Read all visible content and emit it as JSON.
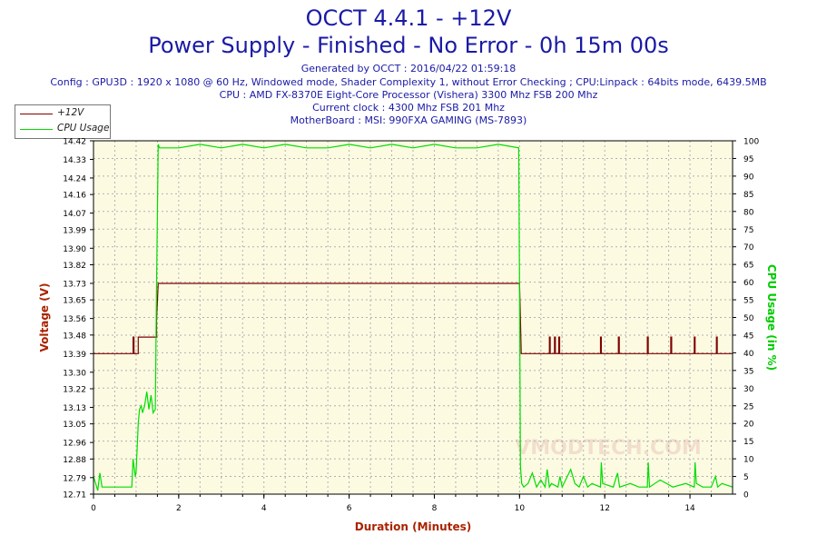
{
  "header": {
    "title": "OCCT 4.4.1 - +12V",
    "subtitle": "Power Supply - Finished - No Error - 0h 15m 00s",
    "generated": "Generated by OCCT : 2016/04/22 01:59:18",
    "config": "Config : GPU3D : 1920 x 1080 @ 60 Hz, Windowed mode, Shader Complexity 1, without Error Checking ; CPU:Linpack : 64bits mode, 6439.5MB",
    "cpu": "CPU : AMD FX-8370E Eight-Core Processor (Vishera) 3300 Mhz FSB 200 Mhz",
    "clock": "Current clock : 4300 Mhz FSB 201 Mhz",
    "motherboard": "MotherBoard : MSI: 990FXA GAMING (MS-7893)"
  },
  "colors": {
    "voltage": "#800000",
    "cpu": "#00dd00",
    "plot_bg": "#fcfbe2",
    "grid": "#b0b0b0",
    "axis_label_x": "#aa2200",
    "axis_label_y_left": "#aa2200",
    "axis_label_y_right": "#00cc00"
  },
  "watermark": "VMODTECH.COM",
  "chart_data": {
    "type": "line",
    "xlabel": "Duration (Minutes)",
    "ylabel_left": "Voltage (V)",
    "ylabel_right": "CPU Usage (in %)",
    "xlim": [
      0,
      15
    ],
    "x_ticks": [
      0,
      2,
      4,
      6,
      8,
      10,
      12,
      14
    ],
    "ylim_left": [
      12.71,
      14.42
    ],
    "y_ticks_left": [
      "12.71",
      "12.79",
      "12.88",
      "12.96",
      "13.05",
      "13.13",
      "13.22",
      "13.30",
      "13.39",
      "13.48",
      "13.56",
      "13.65",
      "13.73",
      "13.82",
      "13.90",
      "13.99",
      "14.07",
      "14.16",
      "14.24",
      "14.33",
      "14.42"
    ],
    "ylim_right": [
      0,
      100
    ],
    "y_ticks_right": [
      0,
      5,
      10,
      15,
      20,
      25,
      30,
      35,
      40,
      45,
      50,
      55,
      60,
      65,
      70,
      75,
      80,
      85,
      90,
      95,
      100
    ],
    "grid": true,
    "legend_position": "top-left",
    "series": [
      {
        "name": "+12V",
        "axis": "left",
        "x": [
          0,
          0.93,
          0.93,
          0.95,
          0.95,
          1.05,
          1.05,
          1.07,
          1.07,
          1.48,
          1.48,
          1.52,
          1.52,
          10.0,
          10.02,
          10.04,
          10.06,
          10.7,
          10.7,
          10.72,
          10.72,
          10.82,
          10.82,
          10.84,
          10.84,
          10.92,
          10.92,
          10.94,
          10.94,
          11.9,
          11.9,
          11.92,
          11.92,
          12.32,
          12.32,
          12.34,
          12.34,
          13.0,
          13.0,
          13.02,
          13.02,
          13.55,
          13.55,
          13.57,
          13.57,
          14.1,
          14.1,
          14.12,
          14.12,
          14.62,
          14.62,
          14.64,
          14.64,
          15.0
        ],
        "y": [
          13.39,
          13.39,
          13.47,
          13.47,
          13.39,
          13.39,
          13.47,
          13.47,
          13.47,
          13.47,
          13.56,
          13.73,
          13.73,
          13.73,
          13.56,
          13.39,
          13.39,
          13.39,
          13.47,
          13.47,
          13.39,
          13.39,
          13.47,
          13.47,
          13.39,
          13.39,
          13.47,
          13.47,
          13.39,
          13.39,
          13.47,
          13.47,
          13.39,
          13.39,
          13.47,
          13.47,
          13.39,
          13.39,
          13.47,
          13.47,
          13.39,
          13.39,
          13.47,
          13.47,
          13.39,
          13.39,
          13.47,
          13.47,
          13.39,
          13.39,
          13.47,
          13.47,
          13.39,
          13.39
        ]
      },
      {
        "name": "CPU Usage",
        "axis": "right",
        "x": [
          0,
          0.1,
          0.15,
          0.2,
          0.3,
          0.5,
          0.7,
          0.9,
          0.93,
          0.98,
          1.0,
          1.05,
          1.08,
          1.12,
          1.15,
          1.2,
          1.25,
          1.3,
          1.35,
          1.4,
          1.45,
          1.48,
          1.52,
          1.55,
          1.6,
          2.0,
          2.5,
          3.0,
          3.5,
          4.0,
          4.5,
          5.0,
          5.5,
          6.0,
          6.5,
          7.0,
          7.5,
          8.0,
          8.5,
          9.0,
          9.5,
          9.98,
          10.0,
          10.02,
          10.05,
          10.1,
          10.2,
          10.3,
          10.4,
          10.5,
          10.6,
          10.65,
          10.7,
          10.75,
          10.9,
          10.95,
          11.0,
          11.2,
          11.3,
          11.4,
          11.5,
          11.6,
          11.7,
          11.9,
          11.92,
          11.95,
          12.2,
          12.3,
          12.35,
          12.6,
          12.8,
          13.0,
          13.02,
          13.05,
          13.3,
          13.6,
          13.9,
          14.1,
          14.12,
          14.15,
          14.3,
          14.5,
          14.6,
          14.65,
          14.75,
          15.0
        ],
        "y": [
          5,
          1,
          6,
          2,
          2,
          2,
          2,
          2,
          10,
          5,
          6,
          20,
          24,
          25,
          23,
          25,
          29,
          24,
          28,
          23,
          24,
          60,
          99,
          98,
          98,
          98,
          99,
          98,
          99,
          98,
          99,
          98,
          98,
          99,
          98,
          99,
          98,
          99,
          98,
          98,
          99,
          98,
          60,
          8,
          3,
          2,
          3,
          6,
          2,
          4,
          2,
          7,
          2,
          3,
          2,
          5,
          2,
          7,
          3,
          2,
          5,
          2,
          3,
          2,
          9,
          3,
          2,
          6,
          2,
          3,
          2,
          2,
          9,
          2,
          4,
          2,
          3,
          2,
          9,
          3,
          2,
          2,
          5,
          2,
          3,
          2
        ]
      }
    ]
  }
}
